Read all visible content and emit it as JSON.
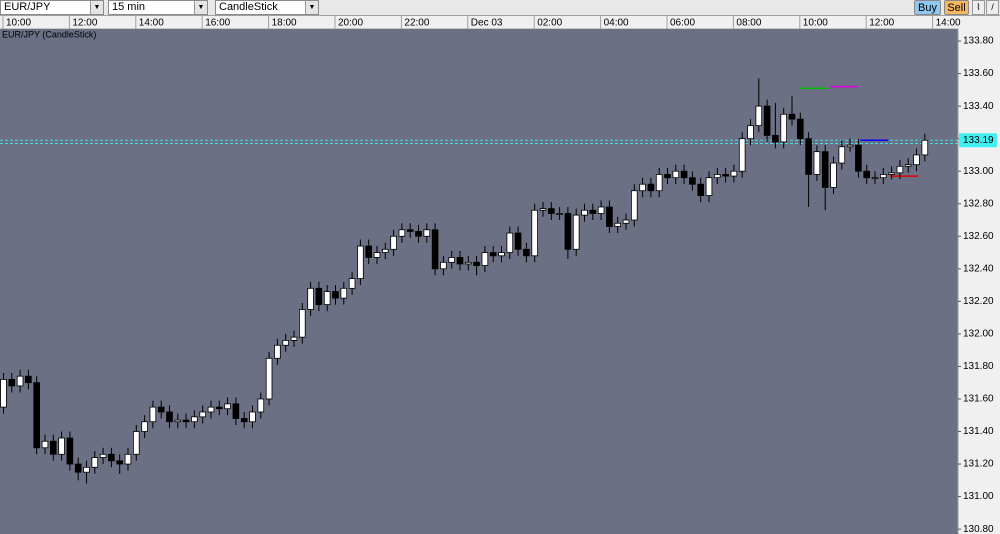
{
  "toolbar": {
    "symbol": "EUR/JPY",
    "interval": "15 min",
    "chart_type": "CandleStick",
    "buy": "Buy",
    "sell": "Sell"
  },
  "chart_data": {
    "type": "candlestick",
    "title": "EUR/JPY (CandleStick)",
    "open": [
      131.55,
      131.72,
      131.68,
      131.74,
      131.7,
      131.3,
      131.34,
      131.26,
      131.36,
      131.2,
      131.15,
      131.18,
      131.24,
      131.26,
      131.22,
      131.2,
      131.26,
      131.4,
      131.46,
      131.55,
      131.52,
      131.46,
      131.47,
      131.46,
      131.49,
      131.52,
      131.55,
      131.54,
      131.57,
      131.48,
      131.46,
      131.52,
      131.6,
      131.85,
      131.93,
      131.96,
      131.98,
      132.15,
      132.28,
      132.18,
      132.26,
      132.22,
      132.28,
      132.34,
      132.54,
      132.47,
      132.5,
      132.52,
      132.6,
      132.64,
      132.63,
      132.6,
      132.64,
      132.4,
      132.44,
      132.47,
      132.43,
      132.44,
      132.42,
      132.5,
      132.48,
      132.5,
      132.62,
      132.52,
      132.48,
      132.76,
      132.77,
      132.74,
      132.74,
      132.52,
      132.73,
      132.76,
      132.74,
      132.78,
      132.66,
      132.68,
      132.7,
      132.88,
      132.92,
      132.88,
      132.98,
      132.96,
      133.0,
      132.96,
      132.92,
      132.85,
      132.96,
      132.98,
      132.97,
      133.0,
      133.2,
      133.28,
      133.4,
      133.22,
      133.18,
      133.35,
      133.32,
      133.2,
      132.98,
      133.12,
      132.9,
      133.05,
      133.15,
      133.16,
      133.0,
      132.96,
      132.96,
      132.98,
      132.99,
      133.03,
      133.04,
      133.1
    ],
    "high": [
      131.76,
      131.76,
      131.78,
      131.78,
      131.74,
      131.38,
      131.38,
      131.4,
      131.4,
      131.24,
      131.22,
      131.28,
      131.3,
      131.3,
      131.26,
      131.3,
      131.44,
      131.5,
      131.59,
      131.59,
      131.56,
      131.51,
      131.51,
      131.53,
      131.56,
      131.59,
      131.59,
      131.61,
      131.61,
      131.52,
      131.56,
      131.64,
      131.89,
      131.97,
      132.0,
      132.02,
      132.19,
      132.32,
      132.32,
      132.3,
      132.3,
      132.32,
      132.38,
      132.58,
      132.58,
      132.54,
      132.56,
      132.64,
      132.68,
      132.68,
      132.67,
      132.68,
      132.68,
      132.48,
      132.51,
      132.51,
      132.48,
      132.48,
      132.54,
      132.54,
      132.54,
      132.66,
      132.66,
      132.56,
      132.8,
      132.81,
      132.81,
      132.78,
      132.78,
      132.77,
      132.8,
      132.8,
      132.82,
      132.82,
      132.72,
      132.74,
      132.92,
      132.96,
      132.96,
      133.02,
      133.02,
      133.04,
      133.04,
      133.0,
      132.96,
      133.0,
      133.02,
      133.02,
      133.04,
      133.24,
      133.32,
      133.57,
      133.44,
      133.42,
      133.39,
      133.46,
      133.36,
      133.24,
      133.16,
      133.16,
      133.09,
      133.19,
      133.2,
      133.2,
      133.04,
      133.0,
      133.02,
      133.03,
      133.07,
      133.08,
      133.14,
      133.23
    ],
    "low": [
      131.51,
      131.64,
      131.64,
      131.66,
      131.26,
      131.26,
      131.22,
      131.22,
      131.16,
      131.1,
      131.08,
      131.14,
      131.2,
      131.18,
      131.14,
      131.16,
      131.22,
      131.36,
      131.42,
      131.48,
      131.42,
      131.42,
      131.42,
      131.42,
      131.45,
      131.48,
      131.5,
      131.5,
      131.44,
      131.42,
      131.42,
      131.48,
      131.56,
      131.81,
      131.89,
      131.92,
      131.94,
      132.11,
      132.14,
      132.14,
      132.18,
      132.18,
      132.24,
      132.3,
      132.43,
      132.43,
      132.46,
      132.48,
      132.56,
      132.59,
      132.56,
      132.56,
      132.36,
      132.36,
      132.4,
      132.39,
      132.39,
      132.36,
      132.38,
      132.44,
      132.44,
      132.46,
      132.48,
      132.44,
      132.44,
      132.72,
      132.7,
      132.7,
      132.46,
      132.48,
      132.69,
      132.7,
      132.7,
      132.62,
      132.62,
      132.64,
      132.66,
      132.84,
      132.84,
      132.84,
      132.92,
      132.92,
      132.92,
      132.88,
      132.81,
      132.81,
      132.92,
      132.93,
      132.93,
      132.96,
      133.16,
      133.24,
      133.18,
      133.14,
      133.14,
      133.28,
      133.16,
      132.78,
      132.94,
      132.76,
      132.86,
      133.01,
      133.12,
      132.96,
      132.92,
      132.92,
      132.92,
      132.95,
      132.95,
      132.99,
      133.0,
      133.06
    ],
    "close": [
      131.72,
      131.68,
      131.74,
      131.7,
      131.3,
      131.34,
      131.26,
      131.36,
      131.2,
      131.15,
      131.18,
      131.24,
      131.26,
      131.22,
      131.2,
      131.26,
      131.4,
      131.46,
      131.55,
      131.52,
      131.46,
      131.47,
      131.46,
      131.49,
      131.52,
      131.55,
      131.54,
      131.57,
      131.48,
      131.46,
      131.52,
      131.6,
      131.85,
      131.93,
      131.96,
      131.98,
      132.15,
      132.28,
      132.18,
      132.26,
      132.22,
      132.28,
      132.34,
      132.54,
      132.47,
      132.5,
      132.52,
      132.6,
      132.64,
      132.63,
      132.6,
      132.64,
      132.4,
      132.44,
      132.47,
      132.43,
      132.44,
      132.42,
      132.5,
      132.48,
      132.5,
      132.62,
      132.52,
      132.48,
      132.76,
      132.77,
      132.74,
      132.74,
      132.52,
      132.73,
      132.76,
      132.74,
      132.78,
      132.66,
      132.68,
      132.7,
      132.88,
      132.92,
      132.88,
      132.98,
      132.96,
      133.0,
      132.96,
      132.92,
      132.85,
      132.96,
      132.98,
      132.97,
      133.0,
      133.2,
      133.28,
      133.4,
      133.22,
      133.18,
      133.35,
      133.32,
      133.2,
      132.98,
      133.12,
      132.9,
      133.05,
      133.15,
      133.16,
      133.0,
      132.96,
      132.96,
      132.98,
      132.99,
      133.03,
      133.04,
      133.1,
      133.19
    ],
    "up_color": "#ffffff",
    "down_color": "#000000",
    "last_price": 133.19,
    "price_lines": [
      {
        "value": 133.51,
        "color": "#00c000"
      },
      {
        "value": 133.52,
        "color": "#e000e0"
      },
      {
        "value": 133.19,
        "color": "#0000ff"
      },
      {
        "value": 132.97,
        "color": "#e00000"
      }
    ],
    "bid_ask": [
      133.19,
      133.17
    ],
    "xlim": [
      -0.36,
      115.06
    ],
    "xticks": [
      {
        "value": 0,
        "label": "10:00"
      },
      {
        "value": 8,
        "label": "12:00"
      },
      {
        "value": 16,
        "label": "14:00"
      },
      {
        "value": 24,
        "label": "16:00"
      },
      {
        "value": 32,
        "label": "18:00"
      },
      {
        "value": 40,
        "label": "20:00"
      },
      {
        "value": 48,
        "label": "22:00"
      },
      {
        "value": 56,
        "label": "Dec 03"
      },
      {
        "value": 64,
        "label": "02:00"
      },
      {
        "value": 72,
        "label": "04:00"
      },
      {
        "value": 80,
        "label": "06:00"
      },
      {
        "value": 88,
        "label": "08:00"
      },
      {
        "value": 96,
        "label": "10:00"
      },
      {
        "value": 104,
        "label": "12:00"
      },
      {
        "value": 112,
        "label": "14:00"
      }
    ],
    "ylim": [
      130.77,
      133.874
    ],
    "yticks": [
      {
        "value": 130.8,
        "label": "130.80"
      },
      {
        "value": 131,
        "label": "131.00"
      },
      {
        "value": 131.2,
        "label": "131.20"
      },
      {
        "value": 131.4,
        "label": "131.40"
      },
      {
        "value": 131.6,
        "label": "131.60"
      },
      {
        "value": 131.8,
        "label": "131.80"
      },
      {
        "value": 132,
        "label": "132.00"
      },
      {
        "value": 132.2,
        "label": "132.20"
      },
      {
        "value": 132.4,
        "label": "132.40"
      },
      {
        "value": 132.6,
        "label": "132.60"
      },
      {
        "value": 132.8,
        "label": "132.80"
      },
      {
        "value": 133,
        "label": "133.00"
      },
      {
        "value": 133.2,
        "label": "133.20"
      },
      {
        "value": 133.4,
        "label": "133.40"
      },
      {
        "value": 133.6,
        "label": "133.60"
      },
      {
        "value": 133.8,
        "label": "133.80"
      }
    ]
  }
}
